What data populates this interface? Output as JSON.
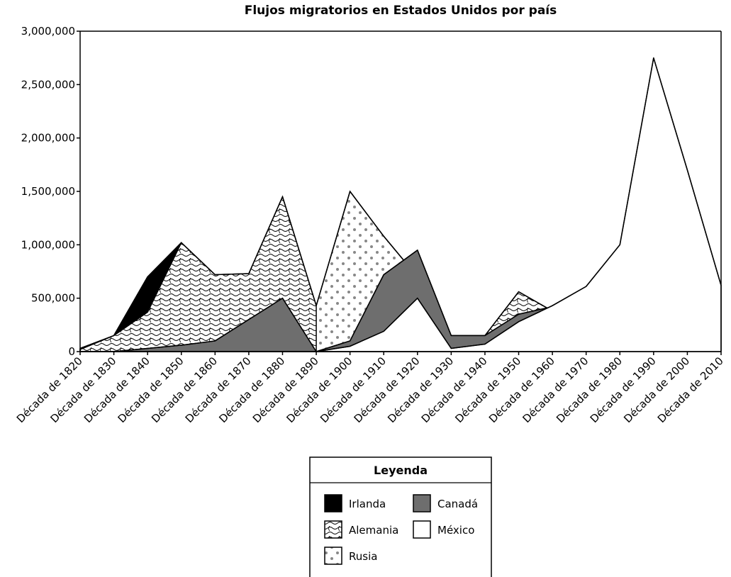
{
  "chart_data": {
    "type": "area",
    "title": "Flujos migratorios en Estados Unidos por país",
    "categories": [
      "Década de 1820",
      "Década de 1830",
      "Década de 1840",
      "Década de 1850",
      "Década de 1860",
      "Década de 1870",
      "Década de 1880",
      "Década de 1890",
      "Década de 1900",
      "Década de 1910",
      "Década de 1920",
      "Década de 1930",
      "Década de 1940",
      "Década de 1950",
      "Década de 1960",
      "Década de 1970",
      "Década de 1980",
      "Década de 1990",
      "Década de 2000",
      "Década de 2010"
    ],
    "series": [
      {
        "name": "Irlanda",
        "color": "#000000",
        "values": [
          30000,
          150000,
          700000,
          1020000,
          null,
          null,
          null,
          null,
          null,
          null,
          null,
          null,
          null,
          null,
          null,
          null,
          null,
          null,
          null,
          null
        ]
      },
      {
        "name": "Alemania",
        "color": "pattern-waves",
        "values": [
          20000,
          150000,
          370000,
          1020000,
          720000,
          730000,
          1450000,
          430000,
          340000,
          300000,
          140000,
          110000,
          150000,
          560000,
          380000,
          null,
          null,
          null,
          null,
          null
        ]
      },
      {
        "name": "Rusia",
        "color": "pattern-dots",
        "values": [
          null,
          null,
          null,
          null,
          null,
          null,
          null,
          430000,
          1500000,
          1080000,
          700000,
          null,
          null,
          null,
          null,
          null,
          null,
          null,
          null,
          null
        ]
      },
      {
        "name": "Canadá",
        "color": "#6e6e6e",
        "values": [
          null,
          0,
          30000,
          60000,
          100000,
          300000,
          500000,
          0,
          100000,
          720000,
          950000,
          150000,
          150000,
          350000,
          420000,
          null,
          null,
          null,
          null,
          null
        ]
      },
      {
        "name": "México",
        "color": "#ffffff",
        "values": [
          0,
          0,
          0,
          0,
          0,
          0,
          0,
          0,
          50000,
          190000,
          500000,
          30000,
          70000,
          280000,
          430000,
          610000,
          1000000,
          2750000,
          1700000,
          620000
        ]
      }
    ],
    "ylim": [
      0,
      3000000
    ],
    "yticks": [
      0,
      {
        "value": 500000,
        "label": "500,000"
      },
      {
        "value": 1000000,
        "label": "1,000,000"
      },
      {
        "value": 1500000,
        "label": "1,500,000"
      },
      {
        "value": 2000000,
        "label": "2,000,000"
      },
      {
        "value": 2500000,
        "label": "2,500,000"
      },
      {
        "value": 3000000,
        "label": "3,000,000"
      }
    ],
    "legend": "bottom",
    "legend_title": "Leyenda"
  }
}
